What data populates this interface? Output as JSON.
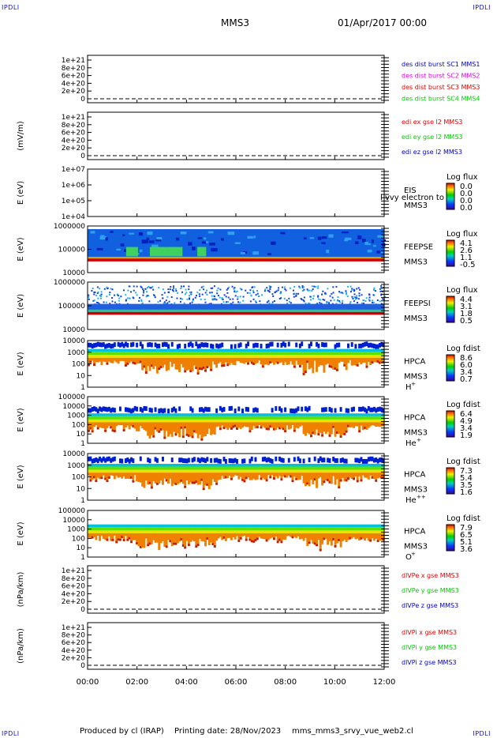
{
  "corners": {
    "tl": "IPDLI",
    "tr": "IPDLI",
    "bl": "IPDLI",
    "br": "IPDLI"
  },
  "header": {
    "spacecraft": "MMS3",
    "date": "01/Apr/2017 00:00"
  },
  "footer": {
    "produced": "Produced by cl (IRAP)",
    "printing": "Printing date: 28/Nov/2023",
    "script": "mms_mms3_srvy_vue_web2.cl"
  },
  "chart_data": [
    {
      "type": "line",
      "ylabel": "",
      "yticks": [
        "1e+21",
        "8e+20",
        "6e+20",
        "4e+20",
        "2e+20",
        "0"
      ],
      "legend": [
        {
          "text": "des dist burst SC1 MMS1",
          "color": "#0000c8"
        },
        {
          "text": "des dist burst SC2 MMS2",
          "color": "#e000e0"
        },
        {
          "text": "des dist burst SC3 MMS3",
          "color": "#e00000"
        },
        {
          "text": "des dist burst SC4 MMS4",
          "color": "#00c800"
        }
      ],
      "series": []
    },
    {
      "type": "line",
      "ylabel": "(mV/m)",
      "yticks": [
        "1e+21",
        "8e+20",
        "6e+20",
        "4e+20",
        "2e+20",
        "0"
      ],
      "legend": [
        {
          "text": "edi ex gse l2 MMS3",
          "color": "#e00000"
        },
        {
          "text": "edi ey gse l2 MMS3",
          "color": "#00c800"
        },
        {
          "text": "edi ez gse l2 MMS3",
          "color": "#0000c8"
        }
      ],
      "series": []
    },
    {
      "type": "heatmap",
      "ylabel": "E (eV)",
      "yticks": [
        "1e+07",
        "1e+06",
        "1e+05",
        "1e+04"
      ],
      "instrument": "EIS",
      "spacecraft": "MMS3",
      "overlay": "l vvy electron to",
      "colorbar_title": "Log flux",
      "colorbar": [
        "0.0",
        "0.0",
        "0.0",
        "0.0"
      ]
    },
    {
      "type": "heatmap",
      "ylabel": "E (eV)",
      "yticks": [
        "1000000",
        "100000",
        "10000"
      ],
      "instrument": "FEEPSE",
      "spacecraft": "MMS3",
      "colorbar_title": "Log flux",
      "colorbar": [
        "4.1",
        "2.6",
        "1.1",
        "-0.5"
      ]
    },
    {
      "type": "heatmap",
      "ylabel": "E (eV)",
      "yticks": [
        "1000000",
        "100000",
        "10000"
      ],
      "instrument": "FEEPSI",
      "spacecraft": "MMS3",
      "colorbar_title": "Log flux",
      "colorbar": [
        "4.4",
        "3.1",
        "1.8",
        "0.5"
      ]
    },
    {
      "type": "heatmap",
      "ylabel": "E (eV)",
      "yticks": [
        "10000",
        "1000",
        "100",
        "10",
        "1"
      ],
      "instrument": "HPCA",
      "spacecraft": "MMS3",
      "species": "H",
      "charge": "+",
      "colorbar_title": "Log fdist",
      "colorbar": [
        "8.6",
        "6.0",
        "3.4",
        "0.7"
      ]
    },
    {
      "type": "heatmap",
      "ylabel": "E (eV)",
      "yticks": [
        "100000",
        "10000",
        "1000",
        "100",
        "10",
        "1"
      ],
      "instrument": "HPCA",
      "spacecraft": "MMS3",
      "species": "He",
      "charge": "+",
      "colorbar_title": "Log fdist",
      "colorbar": [
        "6.4",
        "4.9",
        "3.4",
        "1.9"
      ]
    },
    {
      "type": "heatmap",
      "ylabel": "E (eV)",
      "yticks": [
        "10000",
        "1000",
        "100",
        "10",
        "1"
      ],
      "instrument": "HPCA",
      "spacecraft": "MMS3",
      "species": "He",
      "charge": "++",
      "colorbar_title": "Log fdist",
      "colorbar": [
        "7.3",
        "5.4",
        "3.5",
        "1.6"
      ]
    },
    {
      "type": "heatmap",
      "ylabel": "E (eV)",
      "yticks": [
        "100000",
        "10000",
        "1000",
        "100",
        "10",
        "1"
      ],
      "instrument": "HPCA",
      "spacecraft": "MMS3",
      "species": "O",
      "charge": "+",
      "colorbar_title": "Log fdist",
      "colorbar": [
        "7.9",
        "6.5",
        "5.1",
        "3.6"
      ]
    },
    {
      "type": "line",
      "ylabel": "(nPa/km)",
      "yticks": [
        "1e+21",
        "8e+20",
        "6e+20",
        "4e+20",
        "2e+20",
        "0"
      ],
      "legend": [
        {
          "text": "dlVPe x gse MMS3",
          "color": "#e00000"
        },
        {
          "text": "dlVPe y gse MMS3",
          "color": "#00c800"
        },
        {
          "text": "dlVPe z gse MMS3",
          "color": "#0000c8"
        }
      ],
      "series": []
    },
    {
      "type": "line",
      "ylabel": "(nPa/km)",
      "yticks": [
        "1e+21",
        "8e+20",
        "6e+20",
        "4e+20",
        "2e+20",
        "0"
      ],
      "legend": [
        {
          "text": "dlVPi x gse MMS3",
          "color": "#e00000"
        },
        {
          "text": "dlVPi y gse MMS3",
          "color": "#00c800"
        },
        {
          "text": "dlVPi z gse MMS3",
          "color": "#0000c8"
        }
      ],
      "series": []
    }
  ],
  "xaxis": {
    "ticks": [
      "00:00",
      "02:00",
      "04:00",
      "06:00",
      "08:00",
      "10:00",
      "12:00"
    ],
    "range_hours": [
      0,
      12
    ]
  }
}
